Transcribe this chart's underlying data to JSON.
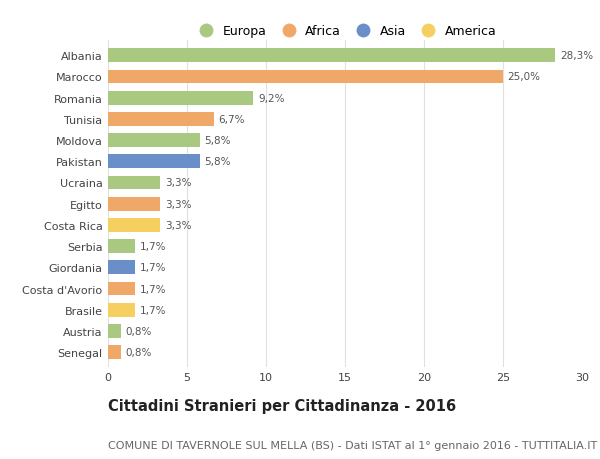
{
  "countries": [
    "Albania",
    "Marocco",
    "Romania",
    "Tunisia",
    "Moldova",
    "Pakistan",
    "Ucraina",
    "Egitto",
    "Costa Rica",
    "Serbia",
    "Giordania",
    "Costa d'Avorio",
    "Brasile",
    "Austria",
    "Senegal"
  ],
  "values": [
    28.3,
    25.0,
    9.2,
    6.7,
    5.8,
    5.8,
    3.3,
    3.3,
    3.3,
    1.7,
    1.7,
    1.7,
    1.7,
    0.8,
    0.8
  ],
  "labels": [
    "28,3%",
    "25,0%",
    "9,2%",
    "6,7%",
    "5,8%",
    "5,8%",
    "3,3%",
    "3,3%",
    "3,3%",
    "1,7%",
    "1,7%",
    "1,7%",
    "1,7%",
    "0,8%",
    "0,8%"
  ],
  "continents": [
    "Europa",
    "Africa",
    "Europa",
    "Africa",
    "Europa",
    "Asia",
    "Europa",
    "Africa",
    "America",
    "Europa",
    "Asia",
    "Africa",
    "America",
    "Europa",
    "Africa"
  ],
  "colors": {
    "Europa": "#a8c97f",
    "Africa": "#f0a868",
    "Asia": "#6a8fc8",
    "America": "#f5d060"
  },
  "title": "Cittadini Stranieri per Cittadinanza - 2016",
  "subtitle": "COMUNE DI TAVERNOLE SUL MELLA (BS) - Dati ISTAT al 1° gennaio 2016 - TUTTITALIA.IT",
  "xlim": [
    0,
    30
  ],
  "xticks": [
    0,
    5,
    10,
    15,
    20,
    25,
    30
  ],
  "background_color": "#ffffff",
  "grid_color": "#e0e0e0",
  "bar_height": 0.65,
  "title_fontsize": 10.5,
  "subtitle_fontsize": 8,
  "label_fontsize": 7.5,
  "tick_fontsize": 8,
  "legend_fontsize": 9
}
